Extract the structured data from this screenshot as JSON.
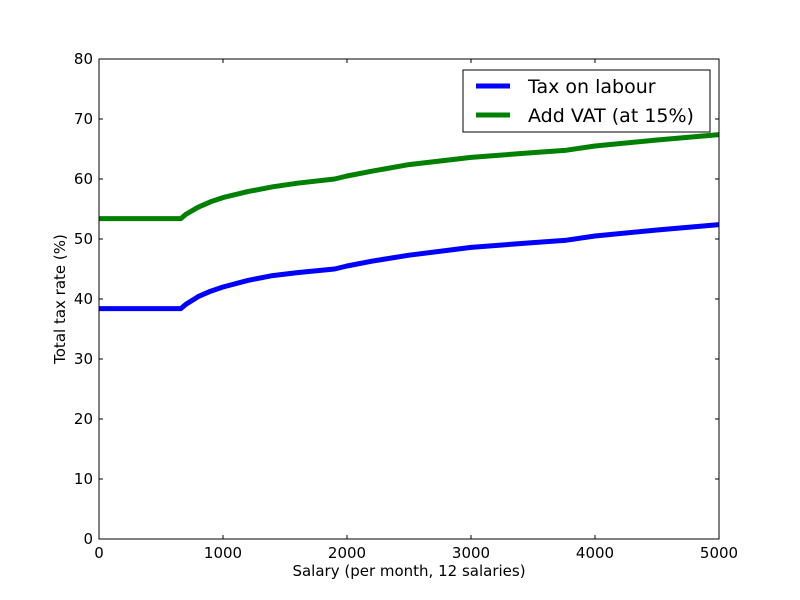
{
  "chart_data": {
    "type": "line",
    "title": "",
    "xlabel": "Salary (per month, 12 salaries)",
    "ylabel": "Total tax rate (%)",
    "xlim": [
      0,
      5000
    ],
    "ylim": [
      0,
      80
    ],
    "xticks": [
      0,
      1000,
      2000,
      3000,
      4000,
      5000
    ],
    "xtick_labels": [
      "0",
      "1000",
      "2000",
      "3000",
      "4000",
      "5000"
    ],
    "yticks": [
      0,
      10,
      20,
      30,
      40,
      50,
      60,
      70,
      80
    ],
    "ytick_labels": [
      "0",
      "10",
      "20",
      "30",
      "40",
      "50",
      "60",
      "70",
      "80"
    ],
    "grid": false,
    "legend": {
      "placement": "top-right"
    },
    "series": [
      {
        "name": "Tax on labour",
        "color": "#0000ff",
        "x": [
          0,
          660,
          700,
          800,
          900,
          1000,
          1200,
          1400,
          1600,
          1900,
          2000,
          2200,
          2500,
          3000,
          3500,
          3770,
          4000,
          4500,
          5000
        ],
        "y": [
          38.4,
          38.4,
          39.1,
          40.4,
          41.3,
          42.0,
          43.1,
          43.9,
          44.4,
          45.0,
          45.5,
          46.3,
          47.3,
          48.6,
          49.4,
          49.8,
          50.5,
          51.5,
          52.4
        ]
      },
      {
        "name": "Add VAT (at 15%)",
        "color": "#008000",
        "x": [
          0,
          660,
          700,
          800,
          900,
          1000,
          1200,
          1400,
          1600,
          1900,
          2000,
          2200,
          2500,
          3000,
          3500,
          3770,
          4000,
          4500,
          5000
        ],
        "y": [
          53.4,
          53.4,
          54.1,
          55.3,
          56.2,
          56.9,
          57.9,
          58.7,
          59.3,
          60.0,
          60.5,
          61.3,
          62.4,
          63.6,
          64.4,
          64.8,
          65.5,
          66.5,
          67.4
        ]
      }
    ]
  }
}
